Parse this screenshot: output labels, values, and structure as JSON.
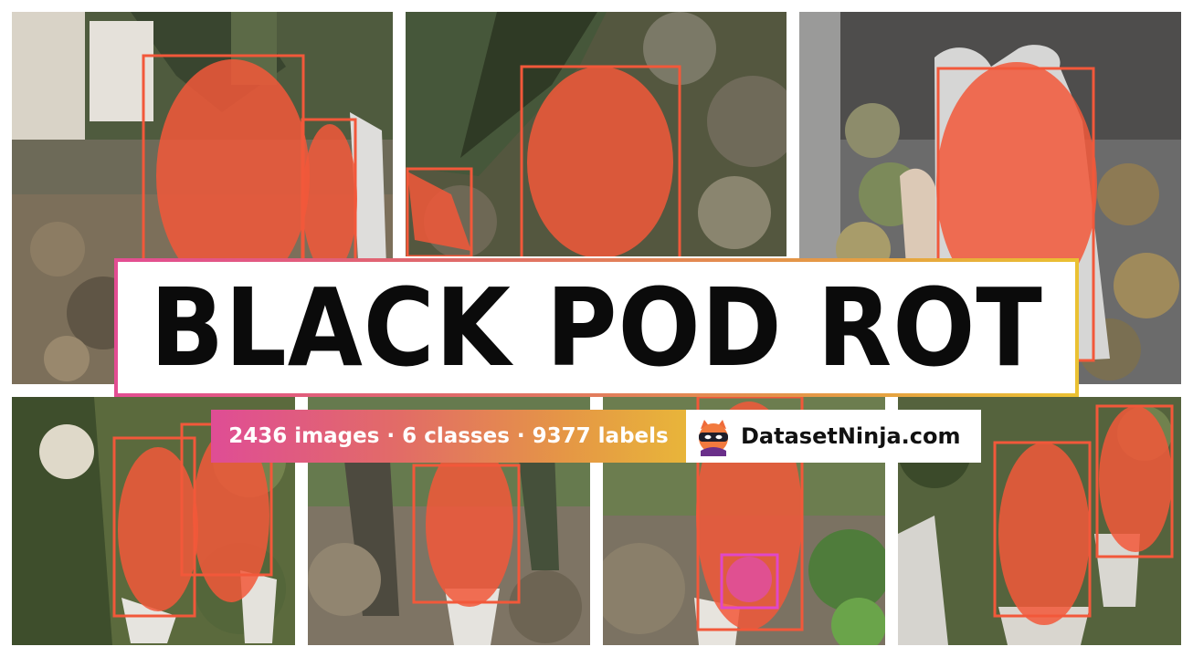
{
  "banner": {
    "title": "BLACK POD ROT",
    "stats": "2436 images · 6 classes · 9377 labels",
    "brand": "DatasetNinja.com",
    "logo_icon": "ninja-logo-icon"
  },
  "colors": {
    "annotation_primary": "#f2583a",
    "annotation_secondary": "#e048c8",
    "title_border_start": "#e34d93",
    "title_border_end": "#eac132"
  }
}
